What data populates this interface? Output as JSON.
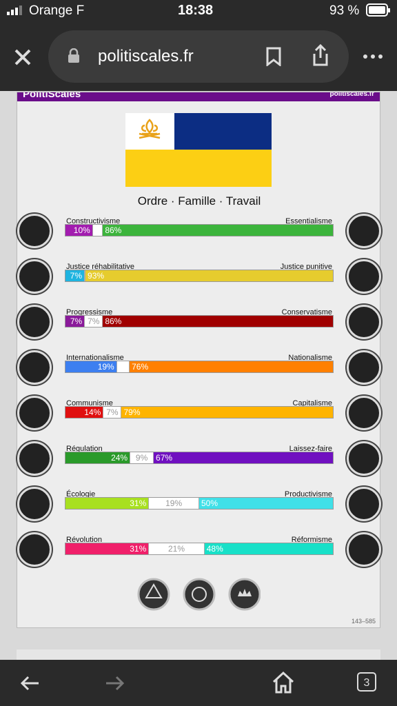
{
  "status": {
    "carrier": "Orange F",
    "time": "18:38",
    "battery": "93 %"
  },
  "browser": {
    "url": "politiscales.fr",
    "tabs": "3"
  },
  "header": {
    "title": "PolitiScales",
    "site": "politiscales.fr"
  },
  "slogan": "Ordre · Famille · Travail",
  "axes": [
    {
      "left_name": "Constructivisme",
      "right_name": "Essentialisme",
      "left": {
        "value": 10,
        "label": "10%"
      },
      "right": {
        "value": 86,
        "label": "86%"
      },
      "left_color": "#a21caf",
      "right_color": "#3cb43c"
    },
    {
      "left_name": "Justice réhabilitative",
      "right_name": "Justice punitive",
      "left": {
        "value": 7,
        "label": "7%"
      },
      "right": {
        "value": 93,
        "label": "93%"
      },
      "left_color": "#1fb4e0",
      "right_color": "#e6cc2e"
    },
    {
      "left_name": "Progressisme",
      "right_name": "Conservatisme",
      "left": {
        "value": 7,
        "label": "7%"
      },
      "neutral": {
        "value": 7,
        "label": "7%"
      },
      "right": {
        "value": 86,
        "label": "86%"
      },
      "left_color": "#8a1a9a",
      "right_color": "#a00000"
    },
    {
      "left_name": "Internationalisme",
      "right_name": "Nationalisme",
      "left": {
        "value": 19,
        "label": "19%"
      },
      "right": {
        "value": 76,
        "label": "76%"
      },
      "left_color": "#3d7ff0",
      "right_color": "#ff8000"
    },
    {
      "left_name": "Communisme",
      "right_name": "Capitalisme",
      "left": {
        "value": 14,
        "label": "14%"
      },
      "neutral": {
        "value": 7,
        "label": "7%"
      },
      "right": {
        "value": 79,
        "label": "79%"
      },
      "left_color": "#e01010",
      "right_color": "#ffb400"
    },
    {
      "left_name": "Régulation",
      "right_name": "Laissez-faire",
      "left": {
        "value": 24,
        "label": "24%"
      },
      "neutral": {
        "value": 9,
        "label": "9%"
      },
      "right": {
        "value": 67,
        "label": "67%"
      },
      "left_color": "#2a9a2a",
      "right_color": "#7010c0"
    },
    {
      "left_name": "Écologie",
      "right_name": "Productivisme",
      "left": {
        "value": 31,
        "label": "31%"
      },
      "neutral": {
        "value": 19,
        "label": "19%"
      },
      "right": {
        "value": 50,
        "label": "50%"
      },
      "left_color": "#a8e020",
      "right_color": "#40e0e8"
    },
    {
      "left_name": "Révolution",
      "right_name": "Réformisme",
      "left": {
        "value": 31,
        "label": "31%"
      },
      "neutral": {
        "value": 21,
        "label": "21%"
      },
      "right": {
        "value": 48,
        "label": "48%"
      },
      "left_color": "#f0206a",
      "right_color": "#18e0c8"
    }
  ],
  "footer": "143–585"
}
